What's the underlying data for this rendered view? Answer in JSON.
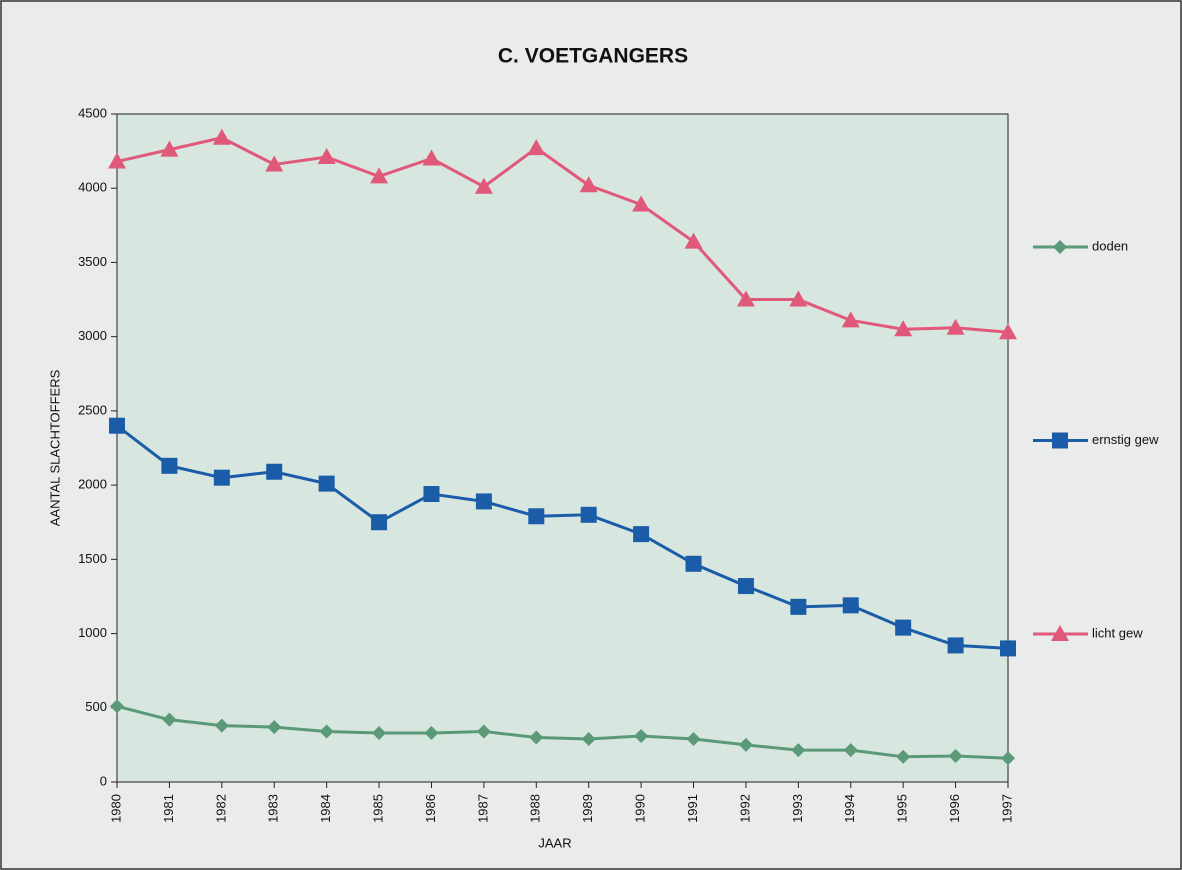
{
  "chart_data": {
    "type": "line",
    "title": "C. VOETGANGERS",
    "x_label": "JAAR",
    "y_label": "AANTAL SLACHTOFFERS",
    "categories": [
      "1980",
      "1981",
      "1982",
      "1983",
      "1984",
      "1985",
      "1986",
      "1987",
      "1988",
      "1989",
      "1990",
      "1991",
      "1992",
      "1993",
      "1994",
      "1995",
      "1996",
      "1997"
    ],
    "series": [
      {
        "name": "doden",
        "color": "#5a9a78",
        "marker": "diamond",
        "values": [
          510,
          420,
          380,
          370,
          340,
          330,
          330,
          340,
          300,
          290,
          310,
          290,
          250,
          215,
          215,
          170,
          175,
          160
        ]
      },
      {
        "name": "ernstig gew",
        "color": "#1a5ca8",
        "marker": "square",
        "values": [
          2400,
          2130,
          2050,
          2090,
          2010,
          1750,
          1940,
          1890,
          1790,
          1800,
          1670,
          1470,
          1320,
          1180,
          1190,
          1040,
          920,
          900
        ]
      },
      {
        "name": "licht gew",
        "color": "#e0587a",
        "marker": "triangle",
        "values": [
          4180,
          4260,
          4340,
          4160,
          4210,
          4080,
          4200,
          4010,
          4270,
          4020,
          3890,
          3640,
          3250,
          3250,
          3110,
          3050,
          3060,
          3030
        ]
      }
    ],
    "ylim": [
      0,
      4500
    ],
    "yticks": [
      0,
      500,
      1000,
      1500,
      2000,
      2500,
      3000,
      3500,
      4000,
      4500
    ],
    "legend": "right"
  }
}
